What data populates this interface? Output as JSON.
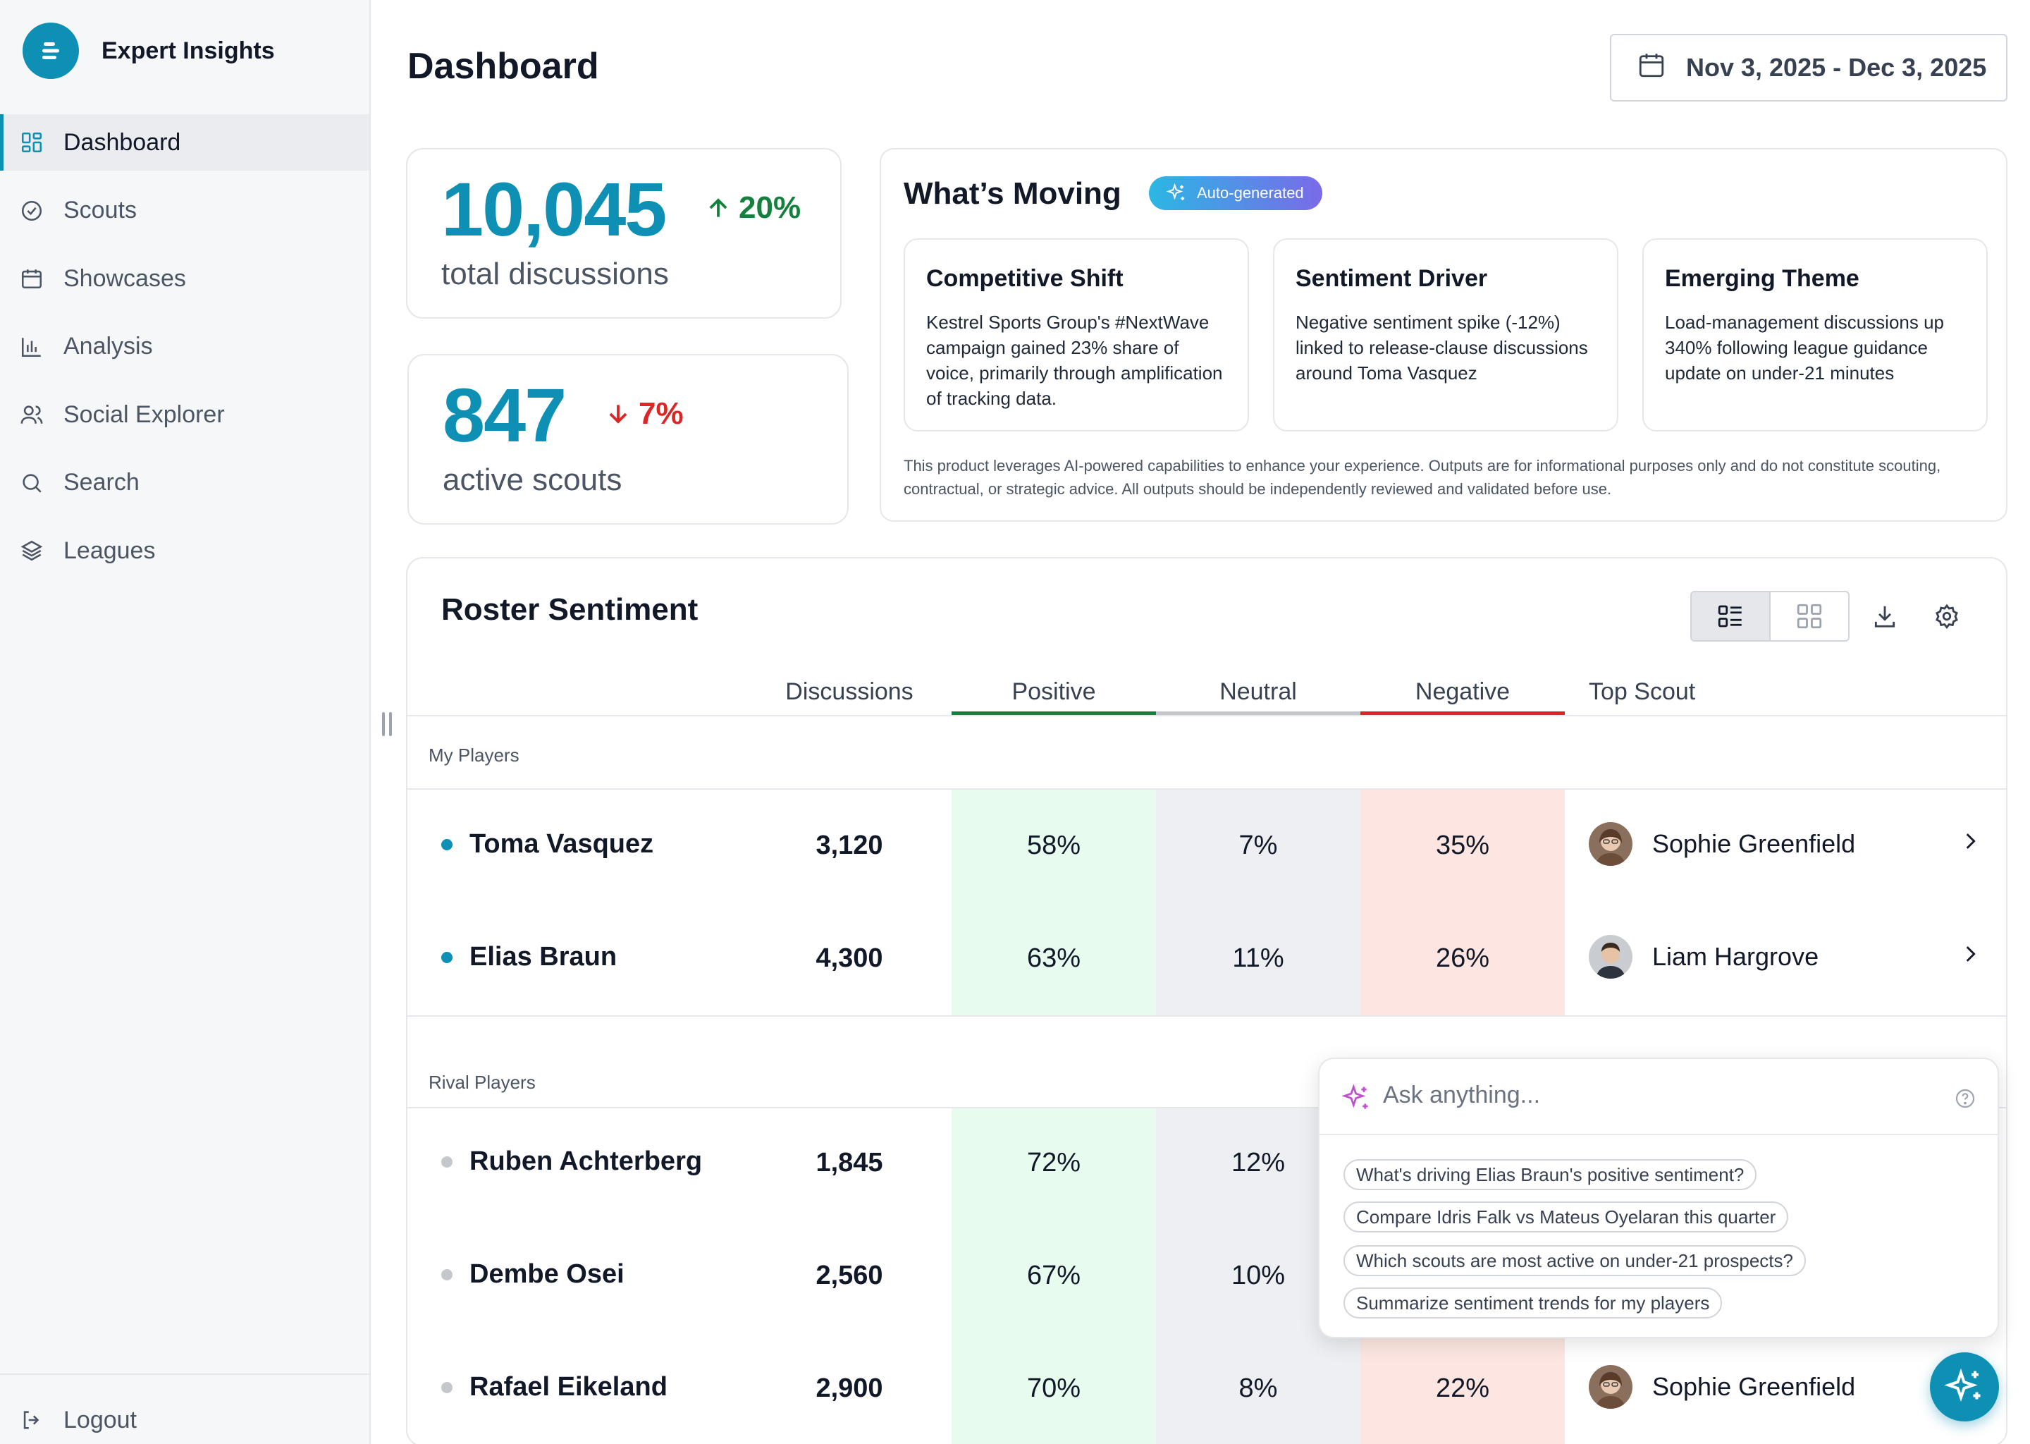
{
  "app": {
    "name": "Expert Insights"
  },
  "sidebar": {
    "items": [
      {
        "label": "Dashboard",
        "icon": "grid-icon",
        "active": true
      },
      {
        "label": "Scouts",
        "icon": "check-circle-icon"
      },
      {
        "label": "Showcases",
        "icon": "calendar-icon"
      },
      {
        "label": "Analysis",
        "icon": "bar-chart-icon"
      },
      {
        "label": "Social Explorer",
        "icon": "users-icon"
      },
      {
        "label": "Search",
        "icon": "search-icon"
      },
      {
        "label": "Leagues",
        "icon": "layers-icon"
      }
    ],
    "logout": "Logout"
  },
  "header": {
    "title": "Dashboard",
    "date_range": "Nov 3, 2025 - Dec 3, 2025"
  },
  "stats": {
    "discussions": {
      "value": "10,045",
      "delta": "20%",
      "direction": "up",
      "label": "total discussions"
    },
    "scouts": {
      "value": "847",
      "delta": "7%",
      "direction": "down",
      "label": "active scouts"
    }
  },
  "moving": {
    "title": "What’s Moving",
    "badge": "Auto-generated",
    "cards": [
      {
        "title": "Competitive Shift",
        "body": "Kestrel Sports Group's #NextWave campaign gained 23% share of voice, primarily through amplification of tracking data."
      },
      {
        "title": "Sentiment Driver",
        "body": "Negative sentiment spike (-12%) linked to release-clause discussions around Toma Vasquez"
      },
      {
        "title": "Emerging Theme",
        "body": "Load-management discussions up 340% following league guidance update on under-21 minutes"
      }
    ],
    "disclaimer": "This product leverages AI-powered capabilities to enhance your experience. Outputs are for informational purposes only and do not constitute scouting, contractual, or strategic advice. All outputs should be independently reviewed and validated before use."
  },
  "roster": {
    "title": "Roster Sentiment",
    "columns": [
      "Discussions",
      "Positive",
      "Neutral",
      "Negative",
      "Top Scout"
    ],
    "sections": [
      {
        "label": "My Players",
        "rows": [
          {
            "name": "Toma Vasquez",
            "discussions": "3,120",
            "positive": "58%",
            "neutral": "7%",
            "negative": "35%",
            "scout": "Sophie Greenfield"
          },
          {
            "name": "Elias Braun",
            "discussions": "4,300",
            "positive": "63%",
            "neutral": "11%",
            "negative": "26%",
            "scout": "Liam Hargrove"
          }
        ]
      },
      {
        "label": "Rival Players",
        "rows": [
          {
            "name": "Ruben Achterberg",
            "discussions": "1,845",
            "positive": "72%",
            "neutral": "12%"
          },
          {
            "name": "Dembe Osei",
            "discussions": "2,560",
            "positive": "67%",
            "neutral": "10%"
          },
          {
            "name": "Rafael Eikeland",
            "discussions": "2,900",
            "positive": "70%",
            "neutral": "8%",
            "negative": "22%",
            "scout": "Sophie Greenfield"
          }
        ]
      }
    ]
  },
  "ask": {
    "placeholder": "Ask anything...",
    "suggestions": [
      "What's driving Elias Braun's positive sentiment?",
      "Compare Idris Falk vs Mateus Oyelaran this quarter",
      "Which scouts are most active on under-21 prospects?",
      "Summarize sentiment trends for my players"
    ]
  },
  "colors": {
    "accent": "#0e8fb4",
    "positive": "#15803d",
    "negative": "#dc2626",
    "positive_bg": "#e8fbef",
    "neutral_bg": "#eeeff2",
    "negative_bg": "#fde6e1"
  }
}
